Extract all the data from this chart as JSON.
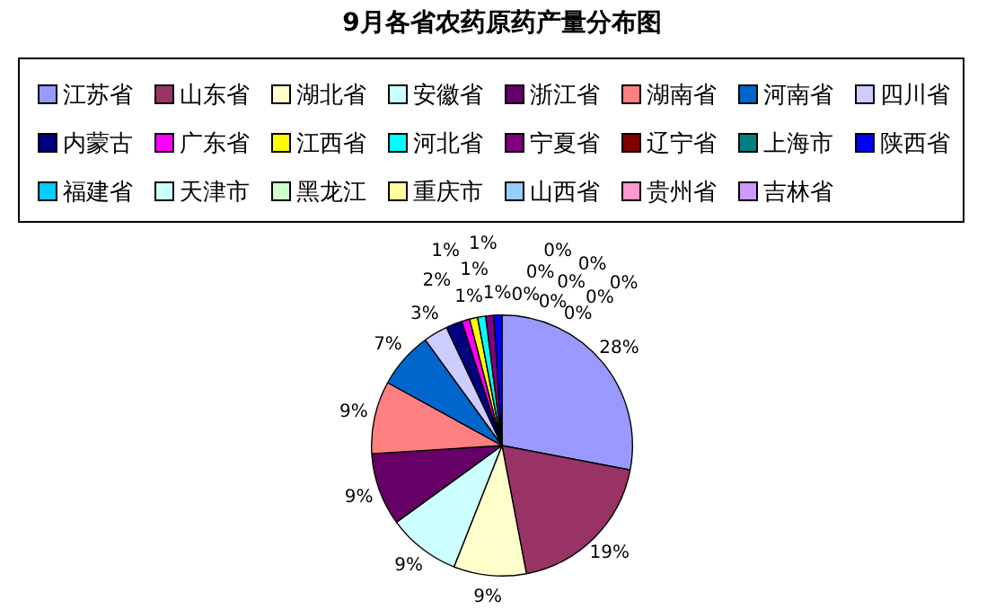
{
  "chart_data": {
    "type": "pie",
    "title": "9月各省农药原药产量分布图",
    "categories": [
      "江苏省",
      "山东省",
      "湖北省",
      "安徽省",
      "浙江省",
      "湖南省",
      "河南省",
      "四川省",
      "内蒙古",
      "广东省",
      "江西省",
      "河北省",
      "宁夏省",
      "辽宁省",
      "上海市",
      "陕西省",
      "福建省",
      "天津市",
      "黑龙江",
      "重庆市",
      "山西省",
      "贵州省",
      "吉林省"
    ],
    "values": [
      28,
      19,
      9,
      9,
      9,
      9,
      7,
      3,
      2,
      1,
      1,
      1,
      1,
      0,
      0,
      1,
      0,
      0,
      0,
      0,
      0,
      0,
      0
    ],
    "colors": [
      "#9999ff",
      "#993366",
      "#ffffcc",
      "#ccffff",
      "#660066",
      "#ff8080",
      "#0066cc",
      "#ccccff",
      "#000080",
      "#ff00ff",
      "#ffff00",
      "#00ffff",
      "#800080",
      "#800000",
      "#008080",
      "#0000ff",
      "#00ccff",
      "#ccffff",
      "#ccffcc",
      "#ffff99",
      "#99ccff",
      "#ff99cc",
      "#cc99ff"
    ],
    "value_labels": [
      "28%",
      "19%",
      "9%",
      "9%",
      "9%",
      "9%",
      "7%",
      "3%",
      "2%",
      "1%",
      "1%",
      "1%",
      "1%",
      "0%",
      "0%",
      "1%",
      "0%",
      "0%",
      "0%",
      "0%",
      "0%",
      "0%",
      "0%"
    ],
    "legend": "top"
  }
}
